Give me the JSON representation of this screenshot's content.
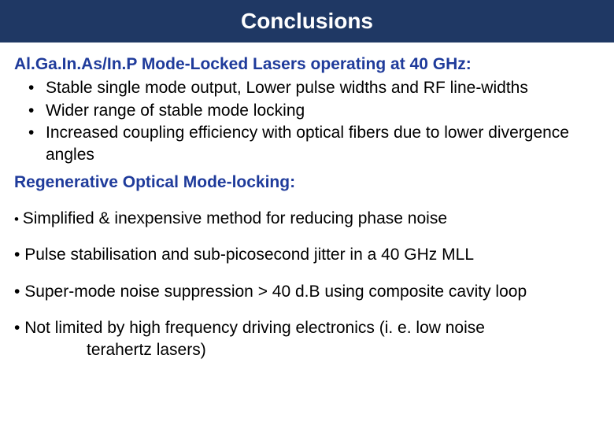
{
  "header": {
    "title": "Conclusions"
  },
  "section1": {
    "heading": "Al.Ga.In.As/In.P Mode-Locked Lasers operating at 40 GHz:",
    "bullets": [
      "Stable single mode output, Lower pulse widths and RF line-widths",
      "Wider range of stable mode locking",
      "Increased coupling efficiency with optical fibers due to lower divergence angles"
    ]
  },
  "section2": {
    "heading": "Regenerative Optical Mode-locking:",
    "points": [
      {
        "lead": "• ",
        "text": "Simplified & inexpensive method for reducing phase noise"
      },
      {
        "lead": "• ",
        "text": "Pulse stabilisation and sub-picosecond jitter in a 40 GHz MLL"
      },
      {
        "lead": "• ",
        "text": "Super-mode noise suppression > 40 d.B using composite cavity loop"
      },
      {
        "lead": "• ",
        "text": "Not limited by high frequency driving electronics (i. e. low noise",
        "cont": "terahertz lasers)"
      }
    ]
  },
  "colors": {
    "header_bg": "#1f3864",
    "header_text": "#ffffff",
    "heading_text": "#1f3b9b",
    "body_text": "#000000",
    "background": "#ffffff"
  },
  "typography": {
    "header_fontsize": 28,
    "heading_fontsize": 21,
    "body_fontsize": 21,
    "small_lead_fontsize": 17
  }
}
